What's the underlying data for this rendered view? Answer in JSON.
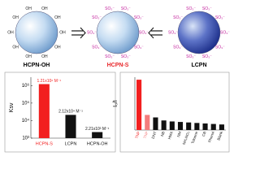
{
  "diagram": {
    "nodes": [
      {
        "label": "HCPN-OH",
        "group": "OH",
        "color": "#000000"
      },
      {
        "label": "HCPN-S",
        "group": "SO₃⁻",
        "color": "#e8282b"
      },
      {
        "label": "LCPN",
        "group": "SO₃⁻",
        "color": "#000000"
      }
    ]
  },
  "chart_data": [
    {
      "type": "bar",
      "y_label": "Ksv",
      "log_scale": true,
      "categories": [
        "HCPN-S",
        "LCPN",
        "HCPN-OH"
      ],
      "values": [
        1210000,
        21200,
        2210
      ],
      "value_labels": [
        "1.21x10⁶ M⁻¹",
        "2.12x10⁴ M⁻¹",
        "2.21x10³ M⁻¹"
      ],
      "colors": [
        "#f21f1f",
        "#111111",
        "#111111"
      ],
      "ylim": [
        1000,
        3000000
      ],
      "yticks": [
        {
          "value": 1000,
          "label": "10³"
        },
        {
          "value": 10000,
          "label": "10⁴"
        },
        {
          "value": 100000,
          "label": "10⁵"
        },
        {
          "value": 1000000,
          "label": "10⁶"
        }
      ]
    },
    {
      "type": "bar",
      "y_label": "I₀/I",
      "categories": [
        "TNP",
        "TNP",
        "DNT",
        "NB",
        "HMX",
        "NM",
        "NH₄NO₃",
        "Toluene",
        "CB",
        "Phenol",
        "Blank"
      ],
      "values": [
        1.0,
        0.3,
        0.25,
        0.19,
        0.17,
        0.16,
        0.15,
        0.14,
        0.13,
        0.12,
        0.11
      ],
      "colors": [
        "#f21f1f",
        "#f47c7c",
        "#111111",
        "#111111",
        "#111111",
        "#111111",
        "#111111",
        "#111111",
        "#111111",
        "#111111",
        "#111111"
      ],
      "ylim": [
        0,
        1.05
      ]
    }
  ]
}
